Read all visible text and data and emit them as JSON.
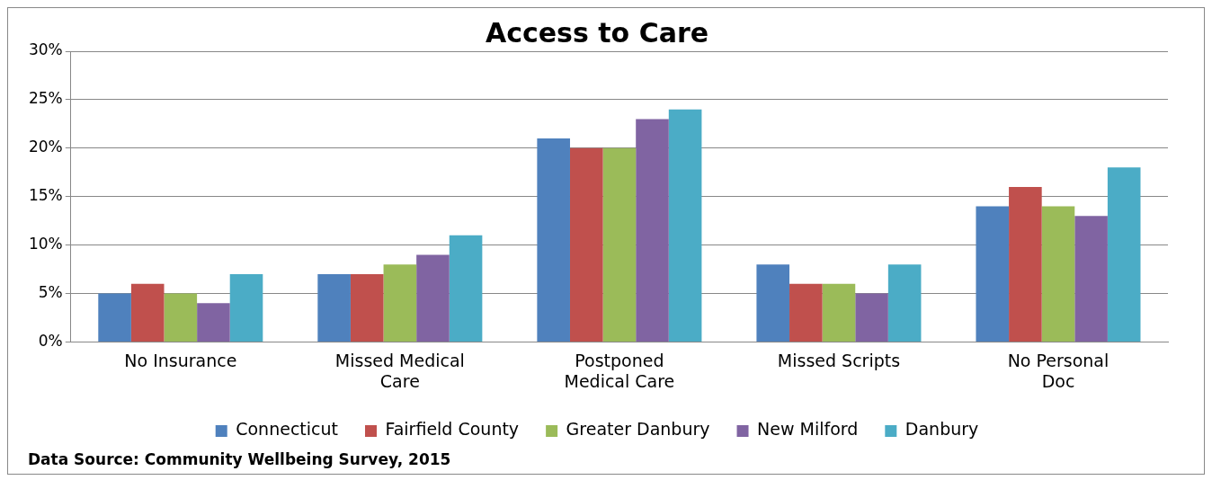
{
  "chart_data": {
    "type": "bar",
    "title": "Access to Care",
    "categories": [
      "No Insurance",
      "Missed Medical Care",
      "Postponed Medical Care",
      "Missed Scripts",
      "No Personal Doc"
    ],
    "series": [
      {
        "name": "Connecticut",
        "color": "#4f81bd",
        "values": [
          5,
          7,
          21,
          8,
          14
        ]
      },
      {
        "name": "Fairfield County",
        "color": "#c0504d",
        "values": [
          6,
          7,
          20,
          6,
          16
        ]
      },
      {
        "name": "Greater Danbury",
        "color": "#9bbb59",
        "values": [
          5,
          8,
          20,
          6,
          14
        ]
      },
      {
        "name": "New Milford",
        "color": "#8064a2",
        "values": [
          4,
          9,
          23,
          5,
          13
        ]
      },
      {
        "name": "Danbury",
        "color": "#4bacc6",
        "values": [
          7,
          11,
          24,
          8,
          18
        ]
      }
    ],
    "ylim": [
      0,
      30
    ],
    "yticks": [
      {
        "value": 0,
        "label": "0%"
      },
      {
        "value": 5,
        "label": "5%"
      },
      {
        "value": 10,
        "label": "10%"
      },
      {
        "value": 15,
        "label": "15%"
      },
      {
        "value": 20,
        "label": "20%"
      },
      {
        "value": 25,
        "label": "25%"
      },
      {
        "value": 30,
        "label": "30%"
      }
    ],
    "grid": "y",
    "legend": "bottom",
    "annotations": [
      "Data Source: Community Wellbeing Survey, 2015"
    ]
  }
}
